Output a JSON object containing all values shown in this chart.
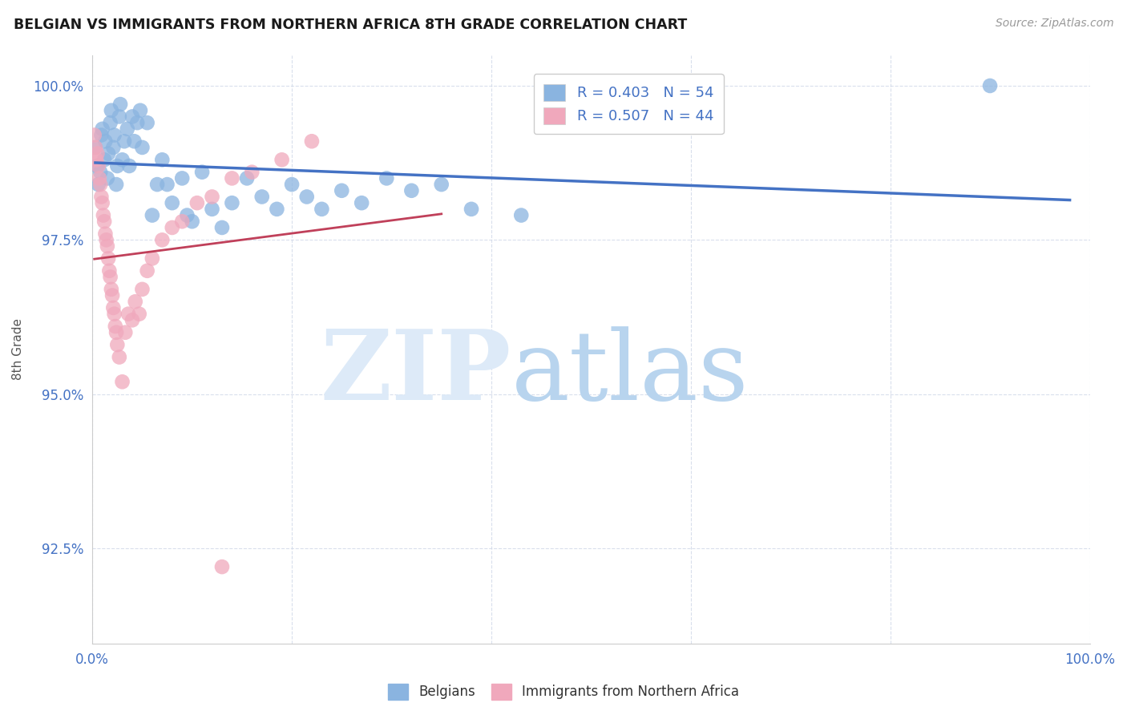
{
  "title": "BELGIAN VS IMMIGRANTS FROM NORTHERN AFRICA 8TH GRADE CORRELATION CHART",
  "source": "Source: ZipAtlas.com",
  "ylabel": "8th Grade",
  "xlim": [
    0.0,
    1.0
  ],
  "ylim": [
    0.9095,
    1.005
  ],
  "yticks": [
    0.925,
    0.95,
    0.975,
    1.0
  ],
  "ytick_labels": [
    "92.5%",
    "95.0%",
    "97.5%",
    "100.0%"
  ],
  "xticks": [
    0.0,
    0.2,
    0.4,
    0.6,
    0.8,
    1.0
  ],
  "xtick_labels": [
    "0.0%",
    "",
    "",
    "",
    "",
    "100.0%"
  ],
  "belgian_color": "#8ab4e0",
  "immigrant_color": "#f0a8bc",
  "trendline_belgian_color": "#4472c4",
  "trendline_immigrant_color": "#c0405a",
  "legend_text_color": "#4472c4",
  "R_belgian": 0.403,
  "N_belgian": 54,
  "R_immigrant": 0.507,
  "N_immigrant": 44,
  "belgian_x": [
    0.003,
    0.005,
    0.006,
    0.008,
    0.009,
    0.01,
    0.012,
    0.013,
    0.015,
    0.016,
    0.018,
    0.019,
    0.021,
    0.022,
    0.024,
    0.025,
    0.027,
    0.028,
    0.03,
    0.032,
    0.035,
    0.037,
    0.04,
    0.042,
    0.045,
    0.048,
    0.05,
    0.055,
    0.06,
    0.065,
    0.07,
    0.075,
    0.08,
    0.09,
    0.095,
    0.1,
    0.11,
    0.12,
    0.13,
    0.14,
    0.155,
    0.17,
    0.185,
    0.2,
    0.215,
    0.23,
    0.25,
    0.27,
    0.295,
    0.32,
    0.35,
    0.38,
    0.43,
    0.9
  ],
  "belgian_y": [
    0.99,
    0.987,
    0.984,
    0.986,
    0.992,
    0.993,
    0.988,
    0.991,
    0.985,
    0.989,
    0.994,
    0.996,
    0.99,
    0.992,
    0.984,
    0.987,
    0.995,
    0.997,
    0.988,
    0.991,
    0.993,
    0.987,
    0.995,
    0.991,
    0.994,
    0.996,
    0.99,
    0.994,
    0.979,
    0.984,
    0.988,
    0.984,
    0.981,
    0.985,
    0.979,
    0.978,
    0.986,
    0.98,
    0.977,
    0.981,
    0.985,
    0.982,
    0.98,
    0.984,
    0.982,
    0.98,
    0.983,
    0.981,
    0.985,
    0.983,
    0.984,
    0.98,
    0.979,
    1.0
  ],
  "immigrant_x": [
    0.002,
    0.003,
    0.004,
    0.005,
    0.006,
    0.007,
    0.008,
    0.009,
    0.01,
    0.011,
    0.012,
    0.013,
    0.014,
    0.015,
    0.016,
    0.017,
    0.018,
    0.019,
    0.02,
    0.021,
    0.022,
    0.023,
    0.024,
    0.025,
    0.027,
    0.03,
    0.033,
    0.036,
    0.04,
    0.043,
    0.047,
    0.05,
    0.055,
    0.06,
    0.07,
    0.08,
    0.09,
    0.105,
    0.12,
    0.14,
    0.16,
    0.19,
    0.22,
    0.13
  ],
  "immigrant_y": [
    0.992,
    0.99,
    0.988,
    0.989,
    0.987,
    0.985,
    0.984,
    0.982,
    0.981,
    0.979,
    0.978,
    0.976,
    0.975,
    0.974,
    0.972,
    0.97,
    0.969,
    0.967,
    0.966,
    0.964,
    0.963,
    0.961,
    0.96,
    0.958,
    0.956,
    0.952,
    0.96,
    0.963,
    0.962,
    0.965,
    0.963,
    0.967,
    0.97,
    0.972,
    0.975,
    0.977,
    0.978,
    0.981,
    0.982,
    0.985,
    0.986,
    0.988,
    0.991,
    0.922
  ]
}
